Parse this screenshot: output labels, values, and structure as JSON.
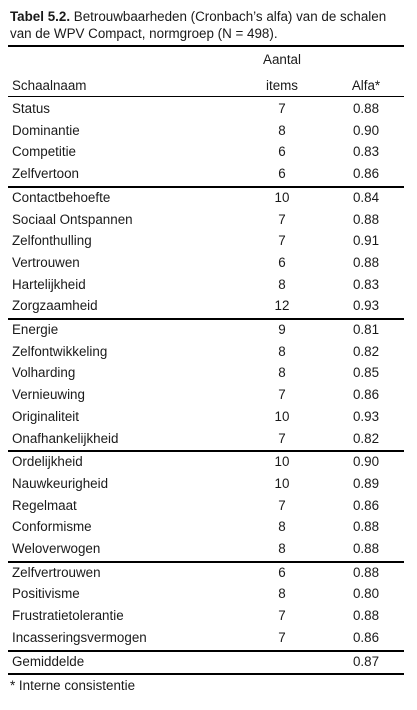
{
  "caption": {
    "label": "Tabel 5.2.",
    "text": " Betrouwbaarheden (Cronbach’s alfa) van de schalen van de WPV Compact, normgroep (N = 498)."
  },
  "header": {
    "name": "Schaalnaam",
    "items_line1": "Aantal",
    "items_line2": "items",
    "alfa": "Alfa*"
  },
  "groups": [
    [
      {
        "name": "Status",
        "items": "7",
        "alfa": "0.88"
      },
      {
        "name": "Dominantie",
        "items": "8",
        "alfa": "0.90"
      },
      {
        "name": "Competitie",
        "items": "6",
        "alfa": "0.83"
      },
      {
        "name": "Zelfvertoon",
        "items": "6",
        "alfa": "0.86"
      }
    ],
    [
      {
        "name": "Contactbehoefte",
        "items": "10",
        "alfa": "0.84"
      },
      {
        "name": "Sociaal Ontspannen",
        "items": "7",
        "alfa": "0.88"
      },
      {
        "name": "Zelfonthulling",
        "items": "7",
        "alfa": "0.91"
      },
      {
        "name": "Vertrouwen",
        "items": "6",
        "alfa": "0.88"
      },
      {
        "name": "Hartelijkheid",
        "items": "8",
        "alfa": "0.83"
      },
      {
        "name": "Zorgzaamheid",
        "items": "12",
        "alfa": "0.93"
      }
    ],
    [
      {
        "name": "Energie",
        "items": "9",
        "alfa": "0.81"
      },
      {
        "name": "Zelfontwikkeling",
        "items": "8",
        "alfa": "0.82"
      },
      {
        "name": "Volharding",
        "items": "8",
        "alfa": "0.85"
      },
      {
        "name": "Vernieuwing",
        "items": "7",
        "alfa": "0.86"
      },
      {
        "name": "Originaliteit",
        "items": "10",
        "alfa": "0.93"
      },
      {
        "name": "Onafhankelijkheid",
        "items": "7",
        "alfa": "0.82"
      }
    ],
    [
      {
        "name": "Ordelijkheid",
        "items": "10",
        "alfa": "0.90"
      },
      {
        "name": "Nauwkeurigheid",
        "items": "10",
        "alfa": "0.89"
      },
      {
        "name": "Regelmaat",
        "items": "7",
        "alfa": "0.86"
      },
      {
        "name": "Conformisme",
        "items": "8",
        "alfa": "0.88"
      },
      {
        "name": "Weloverwogen",
        "items": "8",
        "alfa": "0.88"
      }
    ],
    [
      {
        "name": "Zelfvertrouwen",
        "items": "6",
        "alfa": "0.88"
      },
      {
        "name": "Positivisme",
        "items": "8",
        "alfa": "0.80"
      },
      {
        "name": "Frustratietolerantie",
        "items": "7",
        "alfa": "0.88"
      },
      {
        "name": "Incasseringsvermogen",
        "items": "7",
        "alfa": "0.86"
      }
    ]
  ],
  "total": {
    "name": "Gemiddelde",
    "items": "",
    "alfa": "0.87"
  },
  "footnote": "* Interne consistentie"
}
